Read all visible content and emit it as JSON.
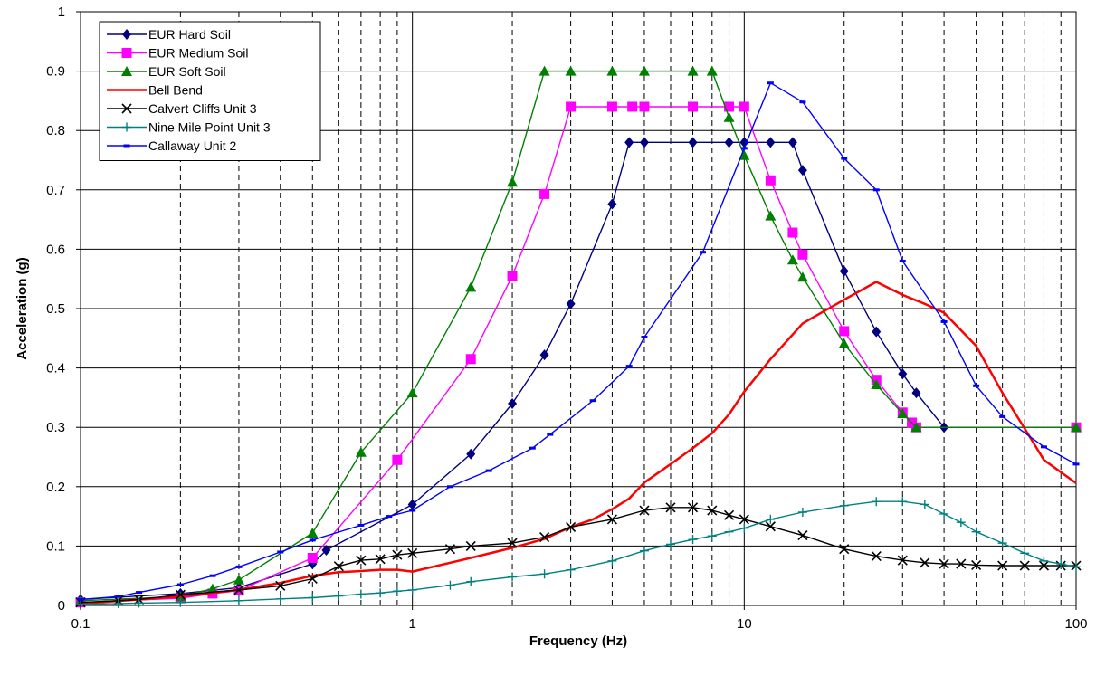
{
  "chart_data": {
    "type": "line",
    "xlabel": "Frequency (Hz)",
    "ylabel": "Acceleration (g)",
    "x_scale": "log",
    "xlim": [
      0.1,
      100
    ],
    "ylim": [
      0,
      1
    ],
    "x_ticks": [
      "0.1",
      "1",
      "10",
      "100"
    ],
    "y_ticks": [
      "0",
      "0.1",
      "0.2",
      "0.3",
      "0.4",
      "0.5",
      "0.6",
      "0.7",
      "0.8",
      "0.9",
      "1"
    ],
    "grid": "major solid, log-minor dashed vertical",
    "legend_position": "top-left",
    "series": [
      {
        "name": "EUR Hard Soil",
        "color": "#000080",
        "marker": "diamond",
        "x": [
          0.1,
          0.2,
          0.3,
          0.5,
          0.55,
          1,
          1.5,
          2,
          2.5,
          3,
          4,
          4.5,
          5,
          7,
          9,
          10,
          12,
          14,
          15,
          20,
          25,
          30,
          33,
          40,
          100
        ],
        "y": [
          0.01,
          0.02,
          0.03,
          0.07,
          0.093,
          0.17,
          0.255,
          0.34,
          0.422,
          0.508,
          0.676,
          0.78,
          0.78,
          0.78,
          0.78,
          0.78,
          0.78,
          0.78,
          0.733,
          0.563,
          0.461,
          0.39,
          0.358,
          0.3,
          0.3
        ]
      },
      {
        "name": "EUR Medium Soil",
        "color": "#FF00FF",
        "marker": "square",
        "x": [
          0.1,
          0.2,
          0.25,
          0.3,
          0.5,
          0.9,
          1.5,
          2,
          2.5,
          3,
          4,
          4.6,
          5,
          7,
          9,
          10,
          12,
          14,
          15,
          20,
          25,
          30,
          32,
          33,
          100
        ],
        "y": [
          0.005,
          0.012,
          0.02,
          0.025,
          0.08,
          0.245,
          0.415,
          0.555,
          0.693,
          0.84,
          0.84,
          0.84,
          0.84,
          0.84,
          0.84,
          0.84,
          0.716,
          0.628,
          0.591,
          0.462,
          0.38,
          0.325,
          0.308,
          0.3,
          0.3
        ]
      },
      {
        "name": "EUR Soft Soil",
        "color": "#008000",
        "marker": "triangle",
        "x": [
          0.1,
          0.2,
          0.25,
          0.3,
          0.5,
          0.7,
          1,
          1.5,
          2,
          2.5,
          3,
          4,
          5,
          7,
          8,
          9,
          10,
          12,
          14,
          15,
          20,
          25,
          30,
          33,
          100
        ],
        "y": [
          0.008,
          0.015,
          0.028,
          0.043,
          0.122,
          0.258,
          0.358,
          0.536,
          0.713,
          0.9,
          0.9,
          0.9,
          0.9,
          0.9,
          0.9,
          0.822,
          0.758,
          0.656,
          0.582,
          0.553,
          0.441,
          0.372,
          0.323,
          0.3,
          0.3
        ]
      },
      {
        "name": "Bell Bend",
        "color": "#FF0000",
        "marker": "none",
        "x": [
          0.1,
          0.2,
          0.3,
          0.4,
          0.5,
          0.6,
          0.7,
          0.8,
          0.9,
          1,
          1.5,
          2,
          2.5,
          3,
          3.5,
          4,
          4.5,
          5,
          6,
          7,
          8,
          9,
          10,
          12,
          15,
          20,
          25,
          30,
          35,
          40,
          50,
          60,
          70,
          80,
          100
        ],
        "y": [
          0.003,
          0.015,
          0.026,
          0.038,
          0.05,
          0.056,
          0.058,
          0.06,
          0.06,
          0.057,
          0.08,
          0.097,
          0.112,
          0.132,
          0.145,
          0.162,
          0.18,
          0.207,
          0.238,
          0.265,
          0.29,
          0.322,
          0.36,
          0.415,
          0.475,
          0.515,
          0.545,
          0.523,
          0.508,
          0.493,
          0.437,
          0.358,
          0.298,
          0.245,
          0.206
        ]
      },
      {
        "name": "Calvert Cliffs Unit 3",
        "color": "#000000",
        "marker": "x",
        "x": [
          0.1,
          0.13,
          0.15,
          0.2,
          0.3,
          0.4,
          0.5,
          0.6,
          0.7,
          0.8,
          0.9,
          1,
          1.3,
          1.5,
          2,
          2.5,
          3,
          4,
          5,
          6,
          7,
          8,
          9,
          10,
          12,
          15,
          20,
          25,
          30,
          35,
          40,
          45,
          50,
          60,
          70,
          80,
          90,
          100
        ],
        "y": [
          0.005,
          0.008,
          0.01,
          0.018,
          0.026,
          0.033,
          0.045,
          0.066,
          0.076,
          0.078,
          0.085,
          0.088,
          0.095,
          0.1,
          0.105,
          0.115,
          0.132,
          0.145,
          0.16,
          0.165,
          0.165,
          0.16,
          0.152,
          0.145,
          0.133,
          0.118,
          0.095,
          0.083,
          0.076,
          0.072,
          0.07,
          0.07,
          0.068,
          0.067,
          0.067,
          0.067,
          0.067,
          0.067
        ]
      },
      {
        "name": "Nine Mile Point Unit 3",
        "color": "#008080",
        "marker": "plus",
        "x": [
          0.1,
          0.13,
          0.15,
          0.2,
          0.3,
          0.4,
          0.5,
          0.6,
          0.7,
          0.8,
          0.9,
          1,
          1.3,
          1.5,
          2,
          2.5,
          3,
          4,
          5,
          6,
          7,
          8,
          9,
          10,
          12,
          15,
          20,
          25,
          30,
          35,
          40,
          45,
          50,
          60,
          70,
          80,
          90,
          100
        ],
        "y": [
          0.002,
          0.003,
          0.004,
          0.005,
          0.008,
          0.011,
          0.013,
          0.016,
          0.019,
          0.021,
          0.024,
          0.026,
          0.034,
          0.04,
          0.048,
          0.053,
          0.06,
          0.075,
          0.092,
          0.103,
          0.111,
          0.117,
          0.124,
          0.13,
          0.145,
          0.157,
          0.168,
          0.175,
          0.175,
          0.17,
          0.154,
          0.14,
          0.124,
          0.105,
          0.088,
          0.075,
          0.07,
          0.065
        ]
      },
      {
        "name": "Callaway Unit 2",
        "color": "#0000FF",
        "marker": "dash",
        "x": [
          0.1,
          0.13,
          0.15,
          0.2,
          0.25,
          0.3,
          0.4,
          0.5,
          0.7,
          0.85,
          1,
          1.3,
          1.7,
          2.3,
          2.6,
          3.5,
          4.5,
          5,
          7.5,
          10,
          12,
          15,
          20,
          25,
          30,
          40,
          50,
          60,
          80,
          100
        ],
        "y": [
          0.01,
          0.015,
          0.022,
          0.035,
          0.05,
          0.065,
          0.09,
          0.11,
          0.135,
          0.15,
          0.16,
          0.2,
          0.227,
          0.265,
          0.288,
          0.345,
          0.403,
          0.452,
          0.595,
          0.77,
          0.88,
          0.848,
          0.753,
          0.7,
          0.58,
          0.478,
          0.37,
          0.318,
          0.267,
          0.238
        ]
      }
    ]
  }
}
